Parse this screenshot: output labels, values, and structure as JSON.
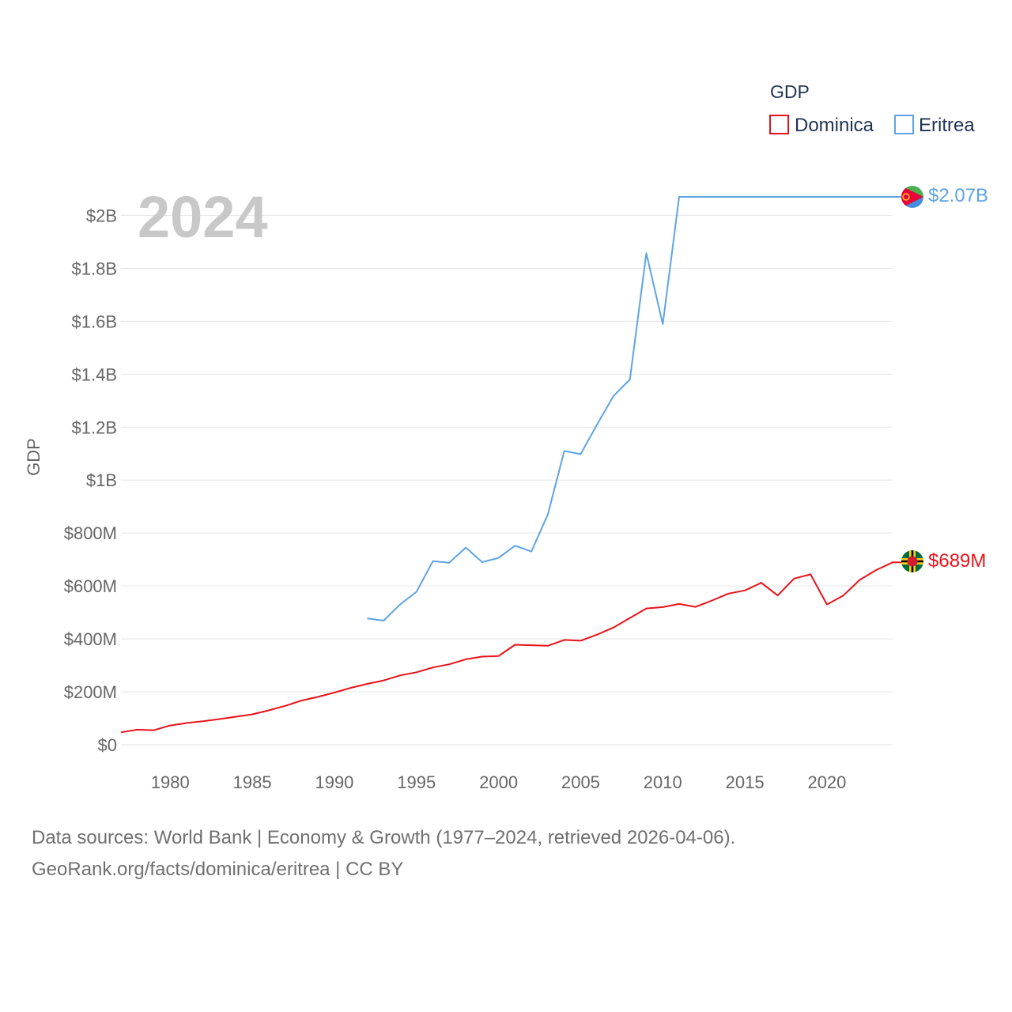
{
  "chart_data": {
    "type": "line",
    "title": "",
    "year_label": "2024",
    "ylabel": "GDP",
    "xlabel": "",
    "xlim": [
      1977,
      2024
    ],
    "ylim": [
      0,
      2070000000
    ],
    "x_ticks": [
      1980,
      1985,
      1990,
      1995,
      2000,
      2005,
      2010,
      2015,
      2020
    ],
    "y_ticks": [
      {
        "value": 0,
        "label": "$0"
      },
      {
        "value": 200000000,
        "label": "$200M"
      },
      {
        "value": 400000000,
        "label": "$400M"
      },
      {
        "value": 600000000,
        "label": "$600M"
      },
      {
        "value": 800000000,
        "label": "$800M"
      },
      {
        "value": 1000000000,
        "label": "$1B"
      },
      {
        "value": 1200000000,
        "label": "$1.2B"
      },
      {
        "value": 1400000000,
        "label": "$1.4B"
      },
      {
        "value": 1600000000,
        "label": "$1.6B"
      },
      {
        "value": 1800000000,
        "label": "$1.8B"
      },
      {
        "value": 2000000000,
        "label": "$2B"
      }
    ],
    "grid": true,
    "legend": {
      "title": "GDP",
      "position": "top-right"
    },
    "series": [
      {
        "name": "Dominica",
        "color": "#e8131a",
        "end_label": "$689M",
        "flag": "dominica-flag-icon",
        "x": [
          1977,
          1978,
          1979,
          1980,
          1981,
          1982,
          1983,
          1984,
          1985,
          1986,
          1987,
          1988,
          1989,
          1990,
          1991,
          1992,
          1993,
          1994,
          1995,
          1996,
          1997,
          1998,
          1999,
          2000,
          2001,
          2002,
          2003,
          2004,
          2005,
          2006,
          2007,
          2008,
          2009,
          2010,
          2011,
          2012,
          2013,
          2014,
          2015,
          2016,
          2017,
          2018,
          2019,
          2020,
          2021,
          2022,
          2023,
          2024
        ],
        "values": [
          47000000,
          57000000,
          55000000,
          73000000,
          82000000,
          89000000,
          97000000,
          106000000,
          115000000,
          130000000,
          147000000,
          167000000,
          181000000,
          197000000,
          215000000,
          230000000,
          243000000,
          262000000,
          274000000,
          292000000,
          304000000,
          323000000,
          333000000,
          335000000,
          378000000,
          376000000,
          374000000,
          396000000,
          393000000,
          416000000,
          443000000,
          479000000,
          515000000,
          520000000,
          532000000,
          521000000,
          545000000,
          571000000,
          583000000,
          612000000,
          564000000,
          628000000,
          644000000,
          530000000,
          564000000,
          623000000,
          660000000,
          689000000
        ]
      },
      {
        "name": "Eritrea",
        "color": "#5ea4e4",
        "end_label": "$2.07B",
        "flag": "eritrea-flag-icon",
        "x": [
          1992,
          1993,
          1994,
          1995,
          1996,
          1997,
          1998,
          1999,
          2000,
          2001,
          2002,
          2003,
          2004,
          2005,
          2006,
          2007,
          2008,
          2009,
          2010,
          2011,
          2012,
          2013,
          2014,
          2015,
          2016,
          2017,
          2018,
          2019,
          2020,
          2021,
          2022,
          2023,
          2024
        ],
        "values": [
          477000000,
          469000000,
          530000000,
          578000000,
          694000000,
          688000000,
          745000000,
          690000000,
          706000000,
          752000000,
          730000000,
          870000000,
          1110000000,
          1098000000,
          1210000000,
          1318000000,
          1380000000,
          1857000000,
          1589000000,
          2070000000,
          2070000000,
          2070000000,
          2070000000,
          2070000000,
          2070000000,
          2070000000,
          2070000000,
          2070000000,
          2070000000,
          2070000000,
          2070000000,
          2070000000,
          2070000000
        ]
      }
    ]
  },
  "footer": {
    "line1": "Data sources: World Bank | Economy & Growth (1977–2024, retrieved 2026-04-06).",
    "line2": "GeoRank.org/facts/dominica/eritrea | CC BY"
  }
}
